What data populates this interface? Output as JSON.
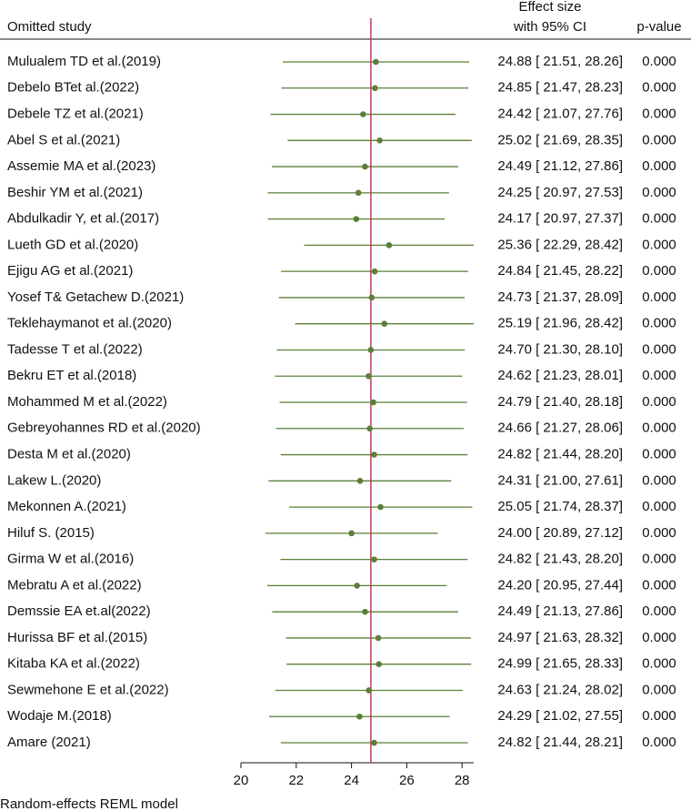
{
  "chart_data": {
    "type": "forest",
    "headers": {
      "study": "Omitted study",
      "effect_1": "Effect size",
      "effect_2": "with 95% CI",
      "p": "p-value"
    },
    "footer": "Random-effects REML model",
    "categories": [
      "Mulualem TD et al.(2019)",
      "Debelo BTet al.(2022)",
      "Debele TZ et al.(2021)",
      "Abel S et al.(2021)",
      "Assemie MA et al.(2023)",
      "Beshir YM  et al.(2021)",
      "Abdulkadir Y, et al.(2017)",
      "Lueth GD et al.(2020)",
      "Ejigu AG et al.(2021)",
      "Yosef T& Getachew D.(2021)",
      "Teklehaymanot et al.(2020)",
      "Tadesse T et al.(2022)",
      "Bekru ET et al.(2018)",
      "Mohammed M et al.(2022)",
      "Gebreyohannes RD et al.(2020)",
      "Desta M et al.(2020)",
      "Lakew L.(2020)",
      "Mekonnen A.(2021)",
      "Hiluf S. (2015)",
      "Girma W et al.(2016)",
      "Mebratu A et al.(2022)",
      "Demssie EA et.al(2022)",
      "Hurissa BF et al.(2015)",
      "Kitaba KA et al.(2022)",
      "Sewmehone E et al.(2022)",
      "Wodaje M.(2018)",
      "Amare (2021)"
    ],
    "values": [
      24.88,
      24.85,
      24.42,
      25.02,
      24.49,
      24.25,
      24.17,
      25.36,
      24.84,
      24.73,
      25.19,
      24.7,
      24.62,
      24.79,
      24.66,
      24.82,
      24.31,
      25.05,
      24.0,
      24.82,
      24.2,
      24.49,
      24.97,
      24.99,
      24.63,
      24.29,
      24.82
    ],
    "lower": [
      21.51,
      21.47,
      21.07,
      21.69,
      21.12,
      20.97,
      20.97,
      22.29,
      21.45,
      21.37,
      21.96,
      21.3,
      21.23,
      21.4,
      21.27,
      21.44,
      21.0,
      21.74,
      20.89,
      21.43,
      20.95,
      21.13,
      21.63,
      21.65,
      21.24,
      21.02,
      21.44
    ],
    "upper": [
      28.26,
      28.23,
      27.76,
      28.35,
      27.86,
      27.53,
      27.37,
      28.42,
      28.22,
      28.09,
      28.42,
      28.1,
      28.01,
      28.18,
      28.06,
      28.2,
      27.61,
      28.37,
      27.12,
      28.2,
      27.44,
      27.86,
      28.32,
      28.33,
      28.02,
      27.55,
      28.21
    ],
    "value_labels": [
      "24.88 [ 21.51,  28.26]",
      "24.85 [ 21.47,  28.23]",
      "24.42 [ 21.07,  27.76]",
      "25.02 [ 21.69,  28.35]",
      "24.49 [ 21.12,  27.86]",
      "24.25 [ 20.97,  27.53]",
      "24.17 [ 20.97,  27.37]",
      "25.36 [ 22.29,  28.42]",
      "24.84 [ 21.45,  28.22]",
      "24.73 [ 21.37,  28.09]",
      "25.19 [ 21.96,  28.42]",
      "24.70 [ 21.30,  28.10]",
      "24.62 [ 21.23,  28.01]",
      "24.79 [ 21.40,  28.18]",
      "24.66 [ 21.27,  28.06]",
      "24.82 [ 21.44,  28.20]",
      "24.31 [ 21.00,  27.61]",
      "25.05 [ 21.74,  28.37]",
      "24.00 [ 20.89,  27.12]",
      "24.82 [ 21.43,  28.20]",
      "24.20 [ 20.95,  27.44]",
      "24.49 [ 21.13,  27.86]",
      "24.97 [ 21.63,  28.32]",
      "24.99 [ 21.65,  28.33]",
      "24.63 [ 21.24,  28.02]",
      "24.29 [ 21.02,  27.55]",
      "24.82 [ 21.44,  28.21]"
    ],
    "p_values": [
      "0.000",
      "0.000",
      "0.000",
      "0.000",
      "0.000",
      "0.000",
      "0.000",
      "0.000",
      "0.000",
      "0.000",
      "0.000",
      "0.000",
      "0.000",
      "0.000",
      "0.000",
      "0.000",
      "0.000",
      "0.000",
      "0.000",
      "0.000",
      "0.000",
      "0.000",
      "0.000",
      "0.000",
      "0.000",
      "0.000",
      "0.000"
    ],
    "reference_line": 24.7,
    "reference_color": "#c8385a",
    "color": "#5a7f3a",
    "xlim": [
      20,
      28.42
    ],
    "xticks": [
      20,
      22,
      24,
      26,
      28
    ]
  }
}
